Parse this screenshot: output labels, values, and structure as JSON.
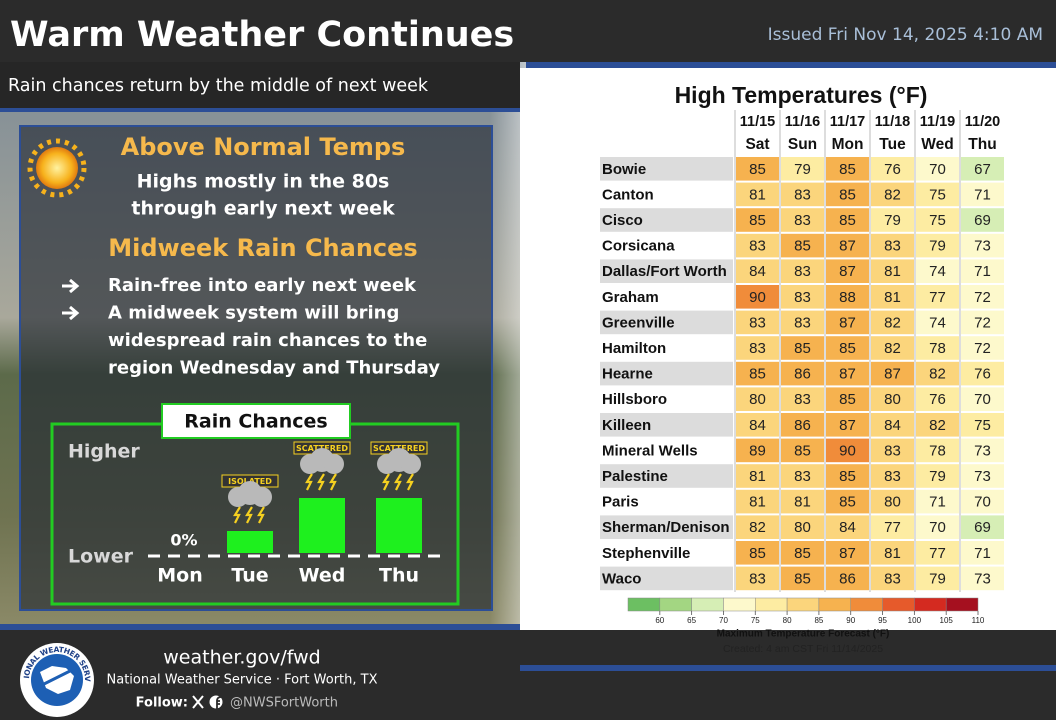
{
  "header": {
    "title": "Warm Weather Continues",
    "subtitle": "Rain chances return by the middle of next week",
    "issued": "Issued Fri Nov 14, 2025 4:10 AM"
  },
  "summary": {
    "temps_heading": "Above Normal Temps",
    "temps_lines": [
      "Highs mostly in the 80s",
      "through early next week"
    ],
    "rain_heading": "Midweek Rain Chances",
    "bullets": [
      [
        "Rain-free into early next week"
      ],
      [
        "A midweek system will bring",
        "widespread rain chances to the",
        "region Wednesday and Thursday"
      ]
    ]
  },
  "rain_chart": {
    "title": "Rain Chances",
    "higher_label": "Higher",
    "lower_label": "Lower",
    "categories": [
      "Mon",
      "Tue",
      "Wed",
      "Thu"
    ],
    "values": [
      0,
      20,
      50,
      50
    ],
    "value_labels": [
      "0%",
      null,
      null,
      null
    ],
    "tags": [
      null,
      "ISOLATED",
      "SCATTERED",
      "SCATTERED"
    ],
    "color": "#1ef01e"
  },
  "temperature_table": {
    "title": "High Temperatures (°F)",
    "dates": [
      "11/15",
      "11/16",
      "11/17",
      "11/18",
      "11/19",
      "11/20"
    ],
    "days": [
      "Sat",
      "Sun",
      "Mon",
      "Tue",
      "Wed",
      "Thu"
    ],
    "rows": [
      {
        "name": "Bowie",
        "values": [
          85,
          79,
          85,
          76,
          70,
          67
        ]
      },
      {
        "name": "Canton",
        "values": [
          81,
          83,
          85,
          82,
          75,
          71
        ]
      },
      {
        "name": "Cisco",
        "values": [
          85,
          83,
          85,
          79,
          75,
          69
        ]
      },
      {
        "name": "Corsicana",
        "values": [
          83,
          85,
          87,
          83,
          79,
          73
        ]
      },
      {
        "name": "Dallas/Fort Worth",
        "values": [
          84,
          83,
          87,
          81,
          74,
          71
        ]
      },
      {
        "name": "Graham",
        "values": [
          90,
          83,
          88,
          81,
          77,
          72
        ]
      },
      {
        "name": "Greenville",
        "values": [
          83,
          83,
          87,
          82,
          74,
          72
        ]
      },
      {
        "name": "Hamilton",
        "values": [
          83,
          85,
          85,
          82,
          78,
          72
        ]
      },
      {
        "name": "Hearne",
        "values": [
          85,
          86,
          87,
          87,
          82,
          76
        ]
      },
      {
        "name": "Hillsboro",
        "values": [
          80,
          83,
          85,
          80,
          76,
          70
        ]
      },
      {
        "name": "Killeen",
        "values": [
          84,
          86,
          87,
          84,
          82,
          75
        ]
      },
      {
        "name": "Mineral Wells",
        "values": [
          89,
          85,
          90,
          83,
          78,
          73
        ]
      },
      {
        "name": "Palestine",
        "values": [
          81,
          83,
          85,
          83,
          79,
          73
        ]
      },
      {
        "name": "Paris",
        "values": [
          81,
          81,
          85,
          80,
          71,
          70
        ]
      },
      {
        "name": "Sherman/Denison",
        "values": [
          82,
          80,
          84,
          77,
          70,
          69
        ]
      },
      {
        "name": "Stephenville",
        "values": [
          85,
          85,
          87,
          81,
          77,
          71
        ]
      },
      {
        "name": "Waco",
        "values": [
          83,
          85,
          86,
          83,
          79,
          73
        ]
      }
    ],
    "colorbar": {
      "lim": [
        55,
        110
      ],
      "ticks": [
        60,
        65,
        70,
        75,
        80,
        85,
        90,
        95,
        100,
        105,
        110
      ],
      "colors": [
        "#6cbf62",
        "#a3d682",
        "#d6eeb5",
        "#fdf9cc",
        "#fdeca2",
        "#fbd57c",
        "#f6b24f",
        "#f08c3a",
        "#e65a2b",
        "#d42a20",
        "#a5101f"
      ],
      "title": "Maximum Temperature Forecast (°F)"
    },
    "created": "Created: 4 am CST Fri 11/14/2025"
  },
  "footer": {
    "url": "weather.gov/fwd",
    "office": "National Weather Service · Fort Worth, TX",
    "follow": "Follow:",
    "handle": "@NWSFortWorth",
    "logo_text": "NATIONAL WEATHER SERVICE"
  }
}
